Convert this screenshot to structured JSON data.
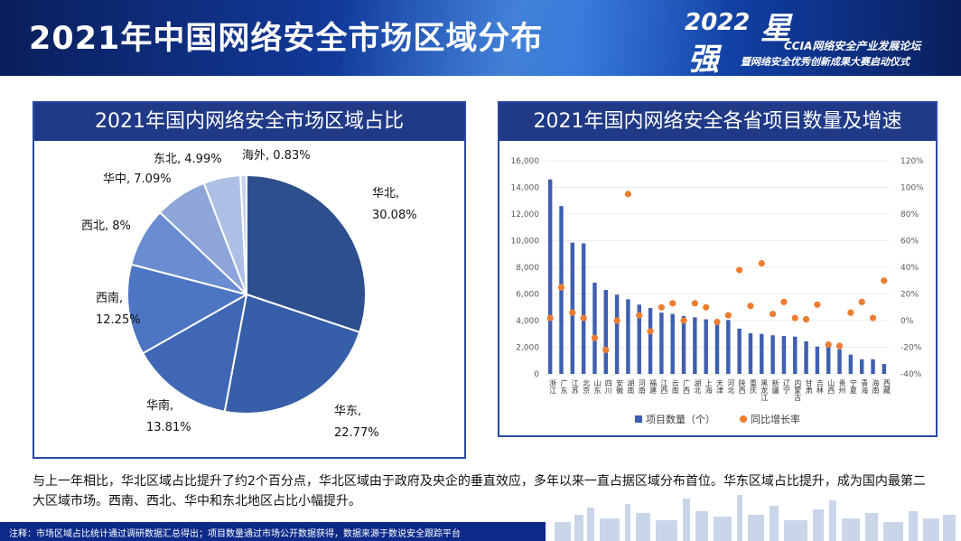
{
  "header": {
    "title": "2021年中国网络安全市场区域分布"
  },
  "logo": {
    "year": "2022",
    "star": "星",
    "strong": "强",
    "line1": "CCIA网络安全产业发展论坛",
    "line2": "暨网络安全优秀创新成果大赛启动仪式"
  },
  "colors": {
    "header_bg": "#123a9a",
    "panel_title_bg": "#203a87",
    "bar": "#3f5fb0",
    "dot": "#ed7d31",
    "footer_bg": "#0d2a8a"
  },
  "chart_data": [
    {
      "type": "pie",
      "title": "2021年国内网络安全市场区域占比",
      "slices": [
        {
          "name": "华北",
          "value": 30.08,
          "label_name": "华北,",
          "label_value": "30.08%",
          "color": "#2d4f8e"
        },
        {
          "name": "华东",
          "value": 22.77,
          "label_name": "华东,",
          "label_value": "22.77%",
          "color": "#375ea8"
        },
        {
          "name": "华南",
          "value": 13.81,
          "label_name": "华南,",
          "label_value": "13.81%",
          "color": "#3f67b5"
        },
        {
          "name": "西南",
          "value": 12.25,
          "label_name": "西南,",
          "label_value": "12.25%",
          "color": "#4c75c4"
        },
        {
          "name": "西北",
          "value": 8,
          "label_name": "西北, 8%",
          "label_value": "",
          "color": "#6a8cd0"
        },
        {
          "name": "华中",
          "value": 7.09,
          "label_name": "华中, 7.09%",
          "label_value": "",
          "color": "#8ea5d9"
        },
        {
          "name": "东北",
          "value": 4.99,
          "label_name": "东北, 4.99%",
          "label_value": "",
          "color": "#adbfe4"
        },
        {
          "name": "海外",
          "value": 0.83,
          "label_name": "海外, 0.83%",
          "label_value": "",
          "color": "#c9d4ee"
        }
      ]
    },
    {
      "type": "bar+scatter",
      "title": "2021年国内网络安全各省项目数量及增速",
      "categories": [
        "浙江",
        "广东",
        "江苏",
        "北京",
        "山东",
        "四川",
        "安徽",
        "湖南",
        "河南",
        "福建",
        "江西",
        "云南",
        "广西",
        "湖北",
        "上海",
        "天津",
        "河北",
        "陕西",
        "重庆",
        "黑龙江",
        "新疆",
        "辽宁",
        "内蒙古",
        "甘肃",
        "吉林",
        "山西",
        "贵州",
        "宁夏",
        "青海",
        "海南",
        "西藏"
      ],
      "series": [
        {
          "name": "项目数量（个）",
          "axis": "left",
          "values": [
            14600,
            12600,
            9850,
            9800,
            6850,
            6300,
            5950,
            5600,
            5200,
            4950,
            4600,
            4500,
            4350,
            4250,
            4100,
            4100,
            4050,
            3400,
            3050,
            3000,
            2900,
            2850,
            2800,
            2450,
            2050,
            2050,
            1850,
            1450,
            1100,
            1100,
            750
          ]
        },
        {
          "name": "同比增长率",
          "axis": "right",
          "values": [
            2,
            25,
            6,
            2,
            -13,
            -22,
            0,
            95,
            4,
            -8,
            10,
            13,
            0,
            13,
            10,
            -1,
            4,
            38,
            11,
            43,
            5,
            14,
            2,
            1,
            12,
            -18,
            -19,
            6,
            14,
            2,
            30
          ]
        }
      ],
      "y_left": {
        "min": 0,
        "max": 16000,
        "ticks": [
          "0",
          "2,000",
          "4,000",
          "6,000",
          "8,000",
          "10,000",
          "12,000",
          "14,000",
          "16,000"
        ]
      },
      "y_right": {
        "min": -40,
        "max": 120,
        "ticks": [
          "-40%",
          "-20%",
          "0%",
          "20%",
          "40%",
          "60%",
          "80%",
          "100%",
          "120%"
        ]
      },
      "legend": {
        "position": "bottom",
        "bar_label": "项目数量（个）",
        "dot_label": "同比增长率"
      }
    }
  ],
  "note": "与上一年相比，华北区域占比提升了约2个百分点，华北区域由于政府及央企的垂直效应，多年以来一直占据区域分布首位。华东区域占比提升，成为国内最第二大区域市场。西南、西北、华中和东北地区占比小幅提升。",
  "footer": {
    "text": "注释：市场区域占比统计通过调研数据汇总得出；项目数量通过市场公开数据获得，数据来源于数说安全跟踪平台"
  }
}
